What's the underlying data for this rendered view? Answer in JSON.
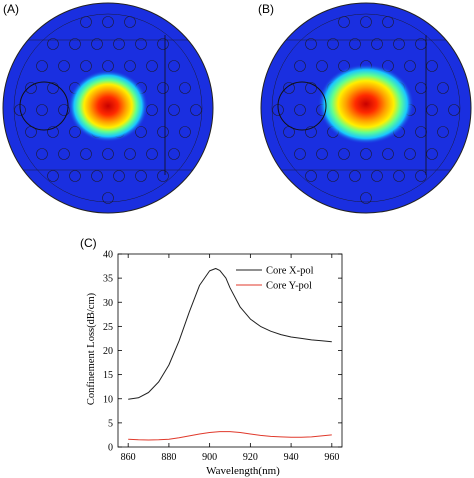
{
  "panels": {
    "a_label": "(A)",
    "b_label": "(B)",
    "c_label": "(C)"
  },
  "field_colors": {
    "background": "#1a2fe0",
    "outline": "#1b1b3a",
    "hot": "#e01800"
  },
  "chart_data": {
    "type": "line",
    "xlabel": "Wavelength(nm)",
    "ylabel": "Confinement Loss(dB/cm)",
    "xlim": [
      855,
      965
    ],
    "ylim": [
      0,
      40
    ],
    "xticks": [
      860,
      880,
      900,
      920,
      940,
      960
    ],
    "yticks": [
      0,
      5,
      10,
      15,
      20,
      25,
      30,
      35,
      40
    ],
    "legend_position": "top-right",
    "grid": false,
    "series": [
      {
        "name": "Core X-pol",
        "color": "#202020",
        "x": [
          860,
          865,
          870,
          875,
          880,
          885,
          890,
          895,
          900,
          903,
          905,
          908,
          910,
          915,
          920,
          925,
          930,
          935,
          940,
          945,
          950,
          955,
          960
        ],
        "y": [
          9.9,
          10.2,
          11.3,
          13.5,
          17.0,
          22.0,
          28.0,
          33.5,
          36.5,
          37.0,
          36.6,
          35.0,
          33.0,
          29.0,
          26.5,
          25.0,
          24.0,
          23.3,
          22.8,
          22.5,
          22.2,
          22.0,
          21.8
        ]
      },
      {
        "name": "Core Y-pol",
        "color": "#e0392b",
        "x": [
          860,
          865,
          870,
          875,
          880,
          885,
          890,
          895,
          900,
          905,
          910,
          915,
          920,
          925,
          930,
          935,
          940,
          945,
          950,
          955,
          960
        ],
        "y": [
          1.6,
          1.5,
          1.45,
          1.5,
          1.6,
          1.9,
          2.3,
          2.7,
          3.0,
          3.2,
          3.2,
          3.0,
          2.7,
          2.4,
          2.2,
          2.1,
          2.0,
          2.0,
          2.1,
          2.3,
          2.5
        ]
      }
    ]
  }
}
